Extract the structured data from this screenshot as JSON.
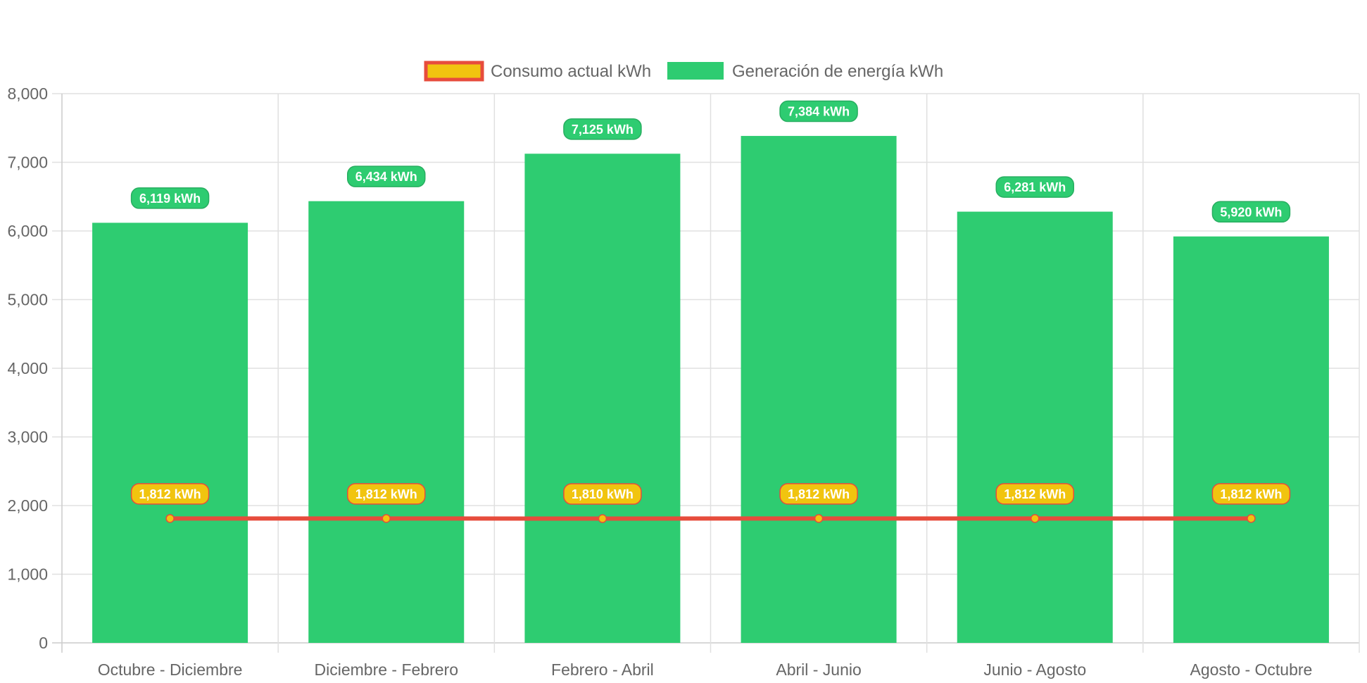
{
  "chart_data": {
    "type": "bar",
    "title": "",
    "xlabel": "",
    "ylabel": "",
    "ylim": [
      0,
      8000
    ],
    "yticks": [
      0,
      1000,
      2000,
      3000,
      4000,
      5000,
      6000,
      7000,
      8000
    ],
    "ytick_labels": [
      "0",
      "1,000",
      "2,000",
      "3,000",
      "4,000",
      "5,000",
      "6,000",
      "7,000",
      "8,000"
    ],
    "grid": true,
    "legend_position": "top-center",
    "categories": [
      "Octubre - Diciembre",
      "Diciembre - Febrero",
      "Febrero - Abril",
      "Abril - Junio",
      "Junio - Agosto",
      "Agosto - Octubre"
    ],
    "series": [
      {
        "name": "Consumo actual kWh",
        "type": "line",
        "color": "#e74c3c",
        "fill": "#f1c40f",
        "values": [
          1812,
          1812,
          1810,
          1812,
          1812,
          1812
        ],
        "labels": [
          "1,812 kWh",
          "1,812 kWh",
          "1,810 kWh",
          "1,812 kWh",
          "1,812 kWh",
          "1,812 kWh"
        ]
      },
      {
        "name": "Generación de energía kWh",
        "type": "bar",
        "color": "#2ecc71",
        "label_border": "#27ae60",
        "values": [
          6119,
          6434,
          7125,
          7384,
          6281,
          5920
        ],
        "labels": [
          "6,119 kWh",
          "6,434 kWh",
          "7,125 kWh",
          "7,384 kWh",
          "6,281 kWh",
          "5,920 kWh"
        ]
      }
    ]
  }
}
